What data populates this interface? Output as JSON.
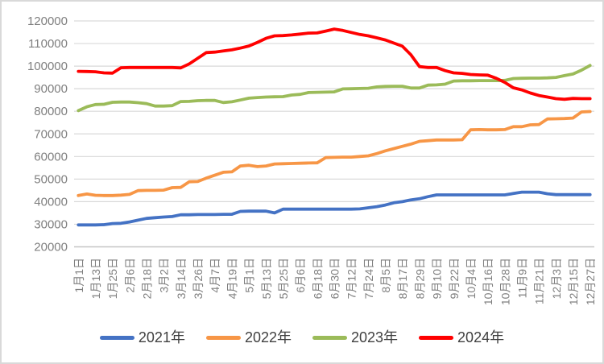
{
  "chart": {
    "background_color": "#ffffff",
    "border_color": "#d9d9d9",
    "gridline_color": "#d9d9d9",
    "axis_line_color": "#c6c6c6",
    "tick_label_color": "#7f7f7f",
    "legend_label_color": "#404040"
  },
  "chart_data": {
    "type": "line",
    "title": "",
    "xlabel": "",
    "ylabel": "",
    "ylim": [
      20000,
      120000
    ],
    "ytick_step": 10000,
    "yticks": [
      20000,
      30000,
      40000,
      50000,
      60000,
      70000,
      80000,
      90000,
      100000,
      110000,
      120000
    ],
    "grid": true,
    "legend_position": "bottom",
    "x": [
      "1月1日",
      "1月7日",
      "1月13日",
      "1月19日",
      "1月25日",
      "1月31日",
      "2月6日",
      "2月12日",
      "2月18日",
      "2月24日",
      "3月2日",
      "3月8日",
      "3月14日",
      "3月20日",
      "3月26日",
      "4月1日",
      "4月7日",
      "4月13日",
      "4月19日",
      "4月25日",
      "5月1日",
      "5月7日",
      "5月13日",
      "5月19日",
      "5月25日",
      "5月31日",
      "6月6日",
      "6月12日",
      "6月18日",
      "6月24日",
      "6月30日",
      "7月6日",
      "7月12日",
      "7月18日",
      "7月24日",
      "7月30日",
      "8月5日",
      "8月11日",
      "8月17日",
      "8月23日",
      "8月29日",
      "9月4日",
      "9月10日",
      "9月16日",
      "9月22日",
      "9月28日",
      "10月4日",
      "10月10日",
      "10月16日",
      "10月22日",
      "10月28日",
      "11月3日",
      "11月9日",
      "11月15日",
      "11月21日",
      "11月27日",
      "12月3日",
      "12月9日",
      "12月15日",
      "12月21日",
      "12月27日"
    ],
    "tick_labels": [
      "1月1日",
      "1月13日",
      "1月25日",
      "2月6日",
      "2月18日",
      "3月2日",
      "3月14日",
      "3月26日",
      "4月7日",
      "4月19日",
      "5月1日",
      "5月13日",
      "5月25日",
      "6月6日",
      "6月18日",
      "6月30日",
      "7月12日",
      "7月24日",
      "8月5日",
      "8月17日",
      "8月29日",
      "9月10日",
      "9月22日",
      "10月4日",
      "10月16日",
      "10月28日",
      "11月9日",
      "11月21日",
      "12月3日",
      "12月15日",
      "12月27日"
    ],
    "series": [
      {
        "name": "2021年",
        "color": "#4472C4",
        "values": [
          29700,
          29700,
          29700,
          29800,
          30300,
          30400,
          31000,
          31800,
          32600,
          32900,
          33200,
          33400,
          34200,
          34200,
          34300,
          34300,
          34300,
          34400,
          34400,
          35700,
          35800,
          35800,
          35800,
          35000,
          36700,
          36700,
          36700,
          36700,
          36700,
          36700,
          36700,
          36700,
          36700,
          36800,
          37300,
          37800,
          38500,
          39500,
          40000,
          40800,
          41300,
          42200,
          43000,
          43000,
          43000,
          43000,
          43000,
          43000,
          43000,
          43000,
          43000,
          43600,
          44200,
          44200,
          44200,
          43500,
          43100,
          43100,
          43100,
          43100,
          43100
        ]
      },
      {
        "name": "2022年",
        "color": "#F79646",
        "values": [
          42700,
          43400,
          42800,
          42700,
          42700,
          42900,
          43200,
          44900,
          45000,
          45000,
          45100,
          46200,
          46300,
          48800,
          48900,
          50400,
          51700,
          53000,
          53200,
          55800,
          56100,
          55500,
          55800,
          56700,
          56800,
          56900,
          57000,
          57100,
          57200,
          59500,
          59600,
          59700,
          59700,
          60000,
          60300,
          61300,
          62500,
          63500,
          64500,
          65500,
          66700,
          67000,
          67300,
          67300,
          67300,
          67400,
          71800,
          71900,
          71800,
          71800,
          71900,
          73200,
          73200,
          74000,
          74100,
          76600,
          76700,
          76800,
          77000,
          79700,
          79900
        ]
      },
      {
        "name": "2023年",
        "color": "#9BBB59",
        "values": [
          80300,
          82000,
          83000,
          83100,
          84000,
          84100,
          84100,
          83800,
          83400,
          82300,
          82300,
          82500,
          84300,
          84400,
          84700,
          84800,
          84800,
          83900,
          84200,
          85000,
          85800,
          86100,
          86300,
          86400,
          86500,
          87200,
          87500,
          88300,
          88400,
          88500,
          88600,
          89900,
          90000,
          90100,
          90200,
          90800,
          91000,
          91100,
          91100,
          90300,
          90300,
          91600,
          91700,
          92000,
          93400,
          93500,
          93500,
          93600,
          93600,
          93600,
          93700,
          94500,
          94600,
          94700,
          94700,
          94800,
          95000,
          95800,
          96500,
          98200,
          100300
        ]
      },
      {
        "name": "2024年",
        "color": "#FF0000",
        "values": [
          97700,
          97600,
          97500,
          97000,
          96900,
          99300,
          99400,
          99400,
          99400,
          99400,
          99400,
          99400,
          99200,
          101000,
          103500,
          106000,
          106200,
          106700,
          107200,
          108000,
          108900,
          110500,
          112300,
          113400,
          113500,
          113800,
          114200,
          114600,
          114700,
          115500,
          116400,
          115800,
          114900,
          114000,
          113400,
          112500,
          111600,
          110200,
          108800,
          105000,
          99800,
          99400,
          99400,
          98000,
          97000,
          96800,
          96300,
          96100,
          96000,
          94600,
          92800,
          90400,
          89500,
          88100,
          87000,
          86300,
          85600,
          85300,
          85700,
          85600,
          85600
        ]
      }
    ]
  }
}
